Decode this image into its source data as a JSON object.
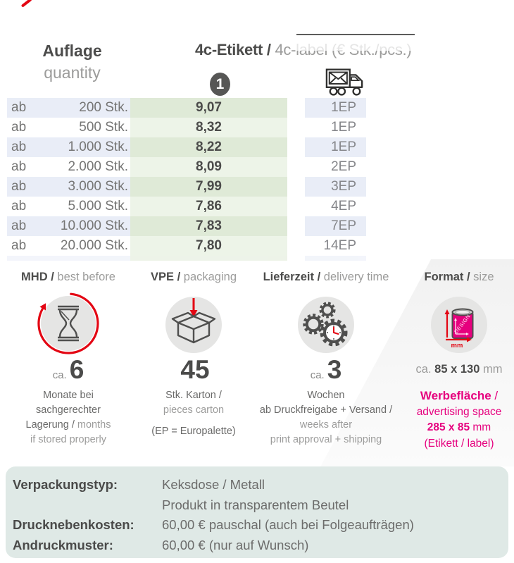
{
  "colors": {
    "magenta": "#e6007e",
    "red": "#e30613",
    "dark_text": "#4c4c4b",
    "gray_text": "#9c9c9b",
    "row_lavender": "#e9edf7",
    "price_green_dark": "#dfead7",
    "price_green_light": "#edf4e8",
    "details_bg": "#dfe9e6",
    "icon_circle_bg": "#e5e5e4",
    "badge_bg": "#565655"
  },
  "header": {
    "quantity_label_de": "Auflage",
    "quantity_label_en": "quantity",
    "product_de": "4c-Etikett / ",
    "product_en": "4c-label (€ Stk./pcs.)",
    "price_badge": "1",
    "truck_icon": "envelope-delivery-truck-icon"
  },
  "price_table": {
    "rows": [
      {
        "ab": "ab",
        "qty": "200 Stk.",
        "price": "9,07",
        "ep": "1EP"
      },
      {
        "ab": "ab",
        "qty": "500 Stk.",
        "price": "8,32",
        "ep": "1EP"
      },
      {
        "ab": "ab",
        "qty": "1.000 Stk.",
        "price": "8,22",
        "ep": "1EP"
      },
      {
        "ab": "ab",
        "qty": "2.000 Stk.",
        "price": "8,09",
        "ep": "2EP"
      },
      {
        "ab": "ab",
        "qty": "3.000 Stk.",
        "price": "7,99",
        "ep": "3EP"
      },
      {
        "ab": "ab",
        "qty": "5.000 Stk.",
        "price": "7,86",
        "ep": "4EP"
      },
      {
        "ab": "ab",
        "qty": "10.000 Stk.",
        "price": "7,83",
        "ep": "7EP"
      },
      {
        "ab": "ab",
        "qty": "20.000 Stk.",
        "price": "7,80",
        "ep": "14EP"
      }
    ]
  },
  "info_sections": [
    {
      "id": "mhd",
      "title_de": "MHD / ",
      "title_en": "best before",
      "icon": "hourglass-recycle-icon",
      "value_prefix": "ca.",
      "value": "6",
      "lines": [
        {
          "segs": [
            {
              "t": "Monate bei",
              "s": "de"
            }
          ]
        },
        {
          "segs": [
            {
              "t": "sachgerechter",
              "s": "de"
            }
          ]
        },
        {
          "segs": [
            {
              "t": "Lagerung / ",
              "s": "de"
            },
            {
              "t": "months",
              "s": "en"
            }
          ]
        },
        {
          "segs": [
            {
              "t": "if stored properly",
              "s": "en"
            }
          ]
        }
      ]
    },
    {
      "id": "vpe",
      "title_de": "VPE / ",
      "title_en": "packaging",
      "icon": "open-box-arrow-icon",
      "value_prefix": "",
      "value": "45",
      "lines": [
        {
          "segs": [
            {
              "t": "Stk. Karton /",
              "s": "de"
            }
          ]
        },
        {
          "segs": [
            {
              "t": "pieces carton",
              "s": "en"
            }
          ]
        },
        {
          "gap": true,
          "segs": [
            {
              "t": "(EP = Europalette)",
              "s": "de"
            }
          ]
        }
      ]
    },
    {
      "id": "lieferzeit",
      "title_de": "Lieferzeit / ",
      "title_en": "delivery time",
      "icon": "gears-clock-icon",
      "value_prefix": "ca.",
      "value": "3",
      "lines": [
        {
          "segs": [
            {
              "t": "Wochen",
              "s": "de"
            }
          ]
        },
        {
          "segs": [
            {
              "t": "ab Druckfreigabe + Versand /",
              "s": "de"
            }
          ]
        },
        {
          "segs": [
            {
              "t": "weeks after",
              "s": "en"
            }
          ]
        },
        {
          "segs": [
            {
              "t": "print approval + shipping",
              "s": "en"
            }
          ]
        }
      ]
    },
    {
      "id": "format",
      "title_de": "Format / ",
      "title_en": "size",
      "icon": "tin-can-dimensions-icon",
      "size_line": {
        "segs": [
          {
            "t": "ca. ",
            "s": "en"
          },
          {
            "t": "85 x 130",
            "s": "deb"
          },
          {
            "t": " mm",
            "s": "en"
          }
        ]
      },
      "promo_lines": [
        {
          "segs": [
            {
              "t": "Werbefläche",
              "s": "magb"
            },
            {
              "t": " /",
              "s": "mag"
            }
          ]
        },
        {
          "segs": [
            {
              "t": "advertising space",
              "s": "mag"
            }
          ]
        },
        {
          "segs": [
            {
              "t": "285 x 85",
              "s": "magb"
            },
            {
              "t": " mm",
              "s": "mag"
            }
          ]
        },
        {
          "segs": [
            {
              "t": "(Etikett / label)",
              "s": "mag"
            }
          ]
        }
      ]
    }
  ],
  "details": {
    "rows": [
      {
        "label": "Verpackungstyp:",
        "values": [
          "Keksdose / Metall",
          "Produkt in transparentem Beutel"
        ]
      },
      {
        "label": "Drucknebenkosten:",
        "values": [
          "60,00 € pauschal (auch bei Folgeaufträgen)"
        ]
      },
      {
        "label": "Andruckmuster:",
        "values": [
          "60,00 € (nur auf Wunsch)"
        ]
      }
    ]
  }
}
